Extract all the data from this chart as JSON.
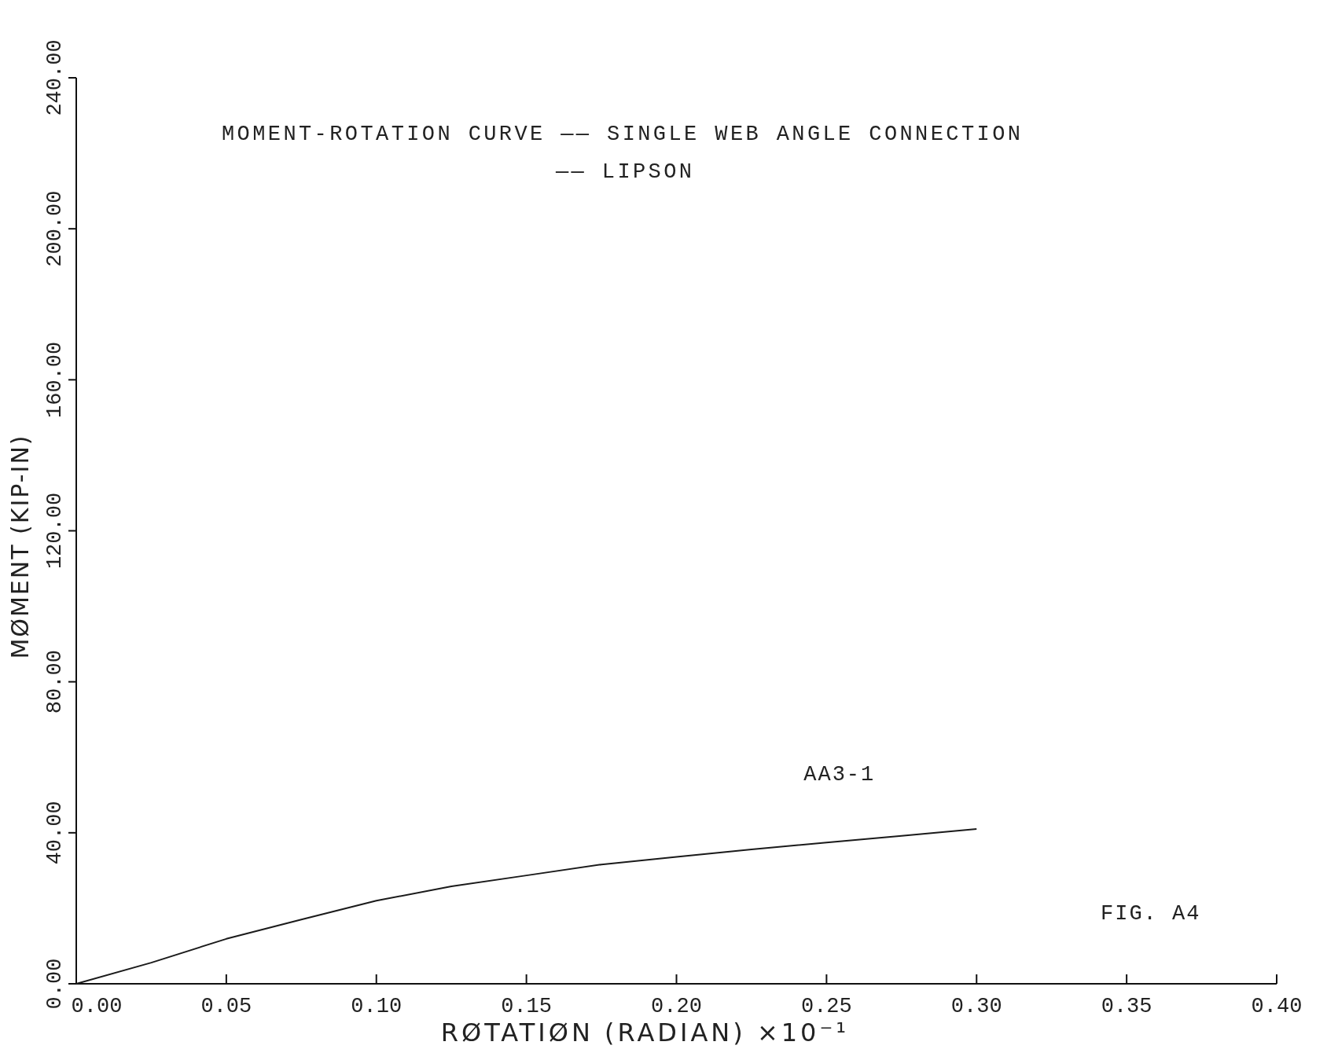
{
  "chart_data": {
    "type": "line",
    "title": "MOMENT-ROTATION CURVE —— SINGLE WEB ANGLE CONNECTION",
    "subtitle": "—— LIPSON",
    "xlabel": "RØTATIØN (RADIAN)  ×10⁻¹",
    "ylabel": "MØMENT (KIP-IN)",
    "annotations": [
      "FIG.  A4"
    ],
    "x": [
      0,
      0.025,
      0.05,
      0.075,
      0.1,
      0.125,
      0.15,
      0.175,
      0.2,
      0.225,
      0.25,
      0.275,
      0.3
    ],
    "series": [
      {
        "name": "AA3-1",
        "color": "#1a1a1a",
        "values": [
          0,
          5.6,
          11.9,
          17,
          22,
          25.8,
          28.7,
          31.6,
          33.6,
          35.6,
          37.4,
          39.2,
          41
        ]
      }
    ],
    "xlim": [
      0,
      0.4
    ],
    "ylim": [
      0,
      240
    ],
    "xticks": [
      {
        "value": 0,
        "label": "0.00"
      },
      {
        "value": 0.05,
        "label": "0.05"
      },
      {
        "value": 0.1,
        "label": "0.10"
      },
      {
        "value": 0.15,
        "label": "0.15"
      },
      {
        "value": 0.2,
        "label": "0.20"
      },
      {
        "value": 0.25,
        "label": "0.25"
      },
      {
        "value": 0.3,
        "label": "0.30"
      },
      {
        "value": 0.35,
        "label": "0.35"
      },
      {
        "value": 0.4,
        "label": "0.40"
      }
    ],
    "yticks": [
      {
        "value": 0,
        "label": "0.00"
      },
      {
        "value": 40,
        "label": "40.00"
      },
      {
        "value": 80,
        "label": "80.00"
      },
      {
        "value": 120,
        "label": "120.00"
      },
      {
        "value": 160,
        "label": "160.00"
      },
      {
        "value": 200,
        "label": "200.00"
      },
      {
        "value": 240,
        "label": "240.00"
      }
    ],
    "grid": false,
    "marker": "none",
    "line_style": "solid"
  }
}
